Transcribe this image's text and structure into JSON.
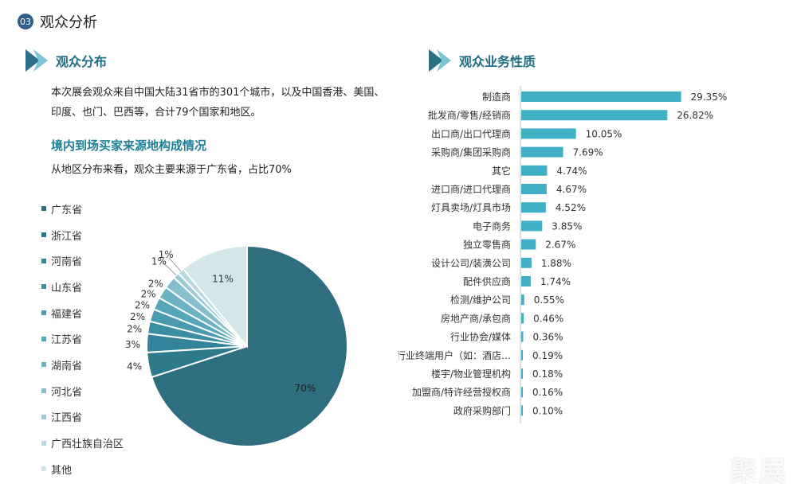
{
  "section": {
    "number": "03",
    "title": "观众分析"
  },
  "left": {
    "heading": "观众分布",
    "intro": "本次展会观众来自中国大陆31省市的301个城市，以及中国香港、美国、印度、也门、巴西等，合计79个国家和地区。",
    "subtitle": "境内到场买家来源地构成情况",
    "subdesc": "从地区分布来看，观众主要来源于广东省，占比70%"
  },
  "right": {
    "heading": "观众业务性质"
  },
  "watermark": "聚展",
  "colors": {
    "accent": "#1f7f96",
    "bar": "#3fb0c6",
    "pie_main": "#2e6e7e"
  },
  "chart_data": [
    {
      "type": "pie",
      "title": "",
      "categories": [
        "广东省",
        "浙江省",
        "河南省",
        "山东省",
        "福建省",
        "江苏省",
        "湖南省",
        "河北省",
        "江西省",
        "广西壮族自治区",
        "其他"
      ],
      "values": [
        70,
        4,
        3,
        2,
        2,
        2,
        2,
        2,
        1,
        1,
        11
      ],
      "labels": [
        "70%",
        "4%",
        "3%",
        "2%",
        "2%",
        "2%",
        "2%",
        "2%",
        "1%",
        "1%",
        "11%"
      ],
      "colors": [
        "#2e6e7e",
        "#2d7a8c",
        "#33849a",
        "#3b8ea4",
        "#4a9ab0",
        "#55a6b8",
        "#6db2c2",
        "#85bfcc",
        "#9dcad6",
        "#b7d8e0",
        "#d3e6ea"
      ],
      "legend_position": "left"
    },
    {
      "type": "bar",
      "orientation": "horizontal",
      "title": "",
      "categories": [
        "制造商",
        "批发商/零售/经销商",
        "出口商/出口代理商",
        "采购商/集团采购商",
        "其它",
        "进口商/进口代理商",
        "灯具卖场/灯具市场",
        "电子商务",
        "独立零售商",
        "设计公司/装潢公司",
        "配件供应商",
        "检测/维护公司",
        "房地产商/承包商",
        "行业协会/媒体",
        "行业终端用户（如：酒店…",
        "楼宇/物业管理机构",
        "加盟商/特许经营授权商",
        "政府采购部门"
      ],
      "values": [
        29.35,
        26.82,
        10.05,
        7.69,
        4.74,
        4.67,
        4.52,
        3.85,
        2.67,
        1.88,
        1.74,
        0.55,
        0.46,
        0.36,
        0.19,
        0.18,
        0.16,
        0.1
      ],
      "labels": [
        "29.35%",
        "26.82%",
        "10.05%",
        "7.69%",
        "4.74%",
        "4.67%",
        "4.52%",
        "3.85%",
        "2.67%",
        "1.88%",
        "1.74%",
        "0.55%",
        "0.46%",
        "0.36%",
        "0.19%",
        "0.18%",
        "0.16%",
        "0.10%"
      ],
      "xlim": [
        0,
        30
      ],
      "grid": false
    }
  ]
}
